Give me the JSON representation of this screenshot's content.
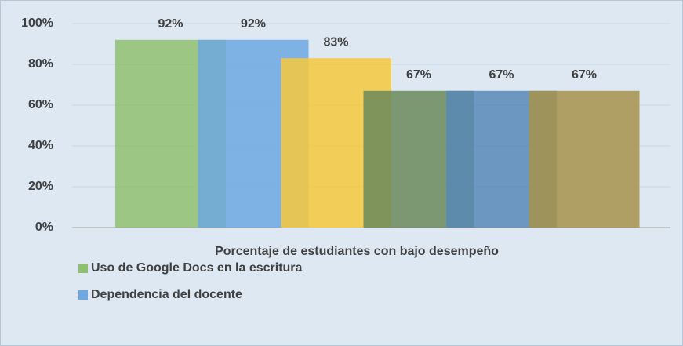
{
  "chart_data": {
    "type": "bar",
    "categories": [
      "Porcentaje de estudiantes con bajo desempeño"
    ],
    "series": [
      {
        "name": "Uso de Google Docs en la escritura",
        "color": "#8fbf6f",
        "values": [
          92
        ],
        "value_labels": [
          "92%"
        ]
      },
      {
        "name": "Dependencia del docente",
        "color": "#6fa8e0",
        "values": [
          92
        ],
        "value_labels": [
          "92%"
        ]
      },
      {
        "color": "#f6c83c",
        "values": [
          83
        ],
        "value_labels": [
          "83%"
        ]
      },
      {
        "color": "#6b8a5c",
        "values": [
          67
        ],
        "value_labels": [
          "67%"
        ]
      },
      {
        "color": "#5888b6",
        "values": [
          67
        ],
        "value_labels": [
          "67%"
        ]
      },
      {
        "color": "#a8924a",
        "values": [
          67
        ],
        "value_labels": [
          "67%"
        ]
      }
    ],
    "ylim": [
      0,
      100
    ],
    "yticks": [
      {
        "value": 0,
        "label": "0%"
      },
      {
        "value": 20,
        "label": "20%"
      },
      {
        "value": 40,
        "label": "40%"
      },
      {
        "value": 60,
        "label": "60%"
      },
      {
        "value": 80,
        "label": "80%"
      },
      {
        "value": 100,
        "label": "100%"
      }
    ],
    "grid": true
  }
}
